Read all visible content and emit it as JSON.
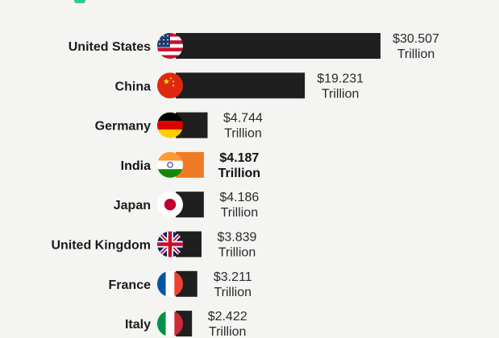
{
  "colors": {
    "bar": "#1f1f1f",
    "highlight_bar": "#ef7c25",
    "accent": "#2ecb8c",
    "background": "#f4f4f2"
  },
  "chart_data": {
    "type": "bar",
    "orientation": "horizontal",
    "categories": [
      "United States",
      "China",
      "Germany",
      "India",
      "Japan",
      "United Kingdom",
      "France",
      "Italy"
    ],
    "values": [
      30.507,
      19.231,
      4.744,
      4.187,
      4.186,
      3.839,
      3.211,
      2.422
    ],
    "value_labels": [
      "$30.507",
      "$19.231",
      "$4.744",
      "$4.187",
      "$4.186",
      "$3.839",
      "$3.211",
      "$2.422"
    ],
    "unit_label": "Trillion",
    "highlighted": "India",
    "flag_icons": [
      "usa-flag-icon",
      "china-flag-icon",
      "germany-flag-icon",
      "india-flag-icon",
      "japan-flag-icon",
      "uk-flag-icon",
      "france-flag-icon",
      "italy-flag-icon"
    ]
  }
}
